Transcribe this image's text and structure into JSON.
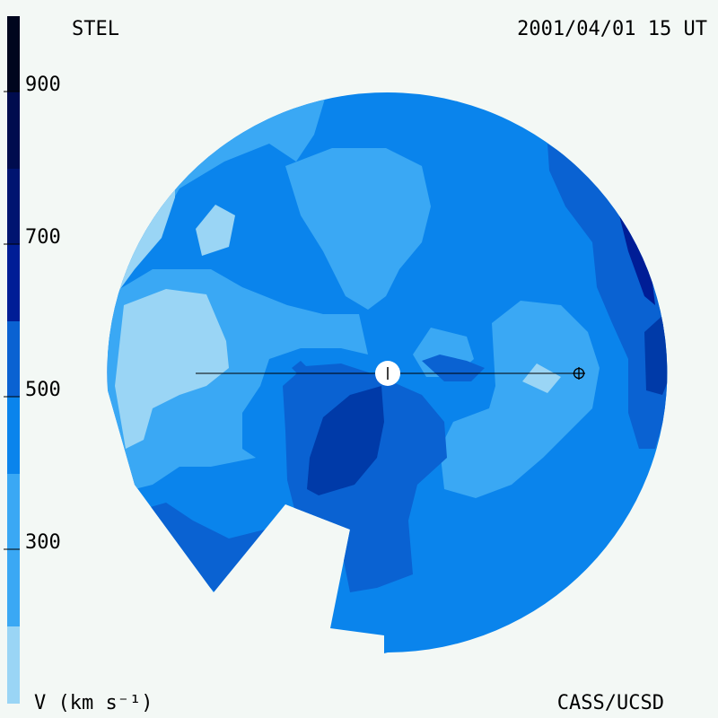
{
  "header": {
    "observatory": "STEL",
    "datetime": "2001/04/01 15 UT"
  },
  "footer": {
    "variable": "V (km s⁻¹)",
    "credit": "CASS/UCSD"
  },
  "colorbar": {
    "tick_labels": [
      "900",
      "700",
      "500",
      "300"
    ],
    "levels": [
      {
        "range": "<200",
        "color": "#9ad5f5"
      },
      {
        "range": "200-300",
        "color": "#3aa8f4"
      },
      {
        "range": "300-400",
        "color": "#0a84ec"
      },
      {
        "range": "400-500",
        "color": "#0a62d2"
      },
      {
        "range": "500-600",
        "color": "#003aa8"
      },
      {
        "range": "600-700",
        "color": "#001d96"
      },
      {
        "range": "700-800",
        "color": "#001470"
      },
      {
        "range": "800-900",
        "color": "#000c4e"
      },
      {
        "range": ">900",
        "color": "#00061e"
      }
    ]
  },
  "map": {
    "view": "ecliptic plane, solar wind velocity",
    "sun_symbol": "sun-icon",
    "earth_symbol": "earth-icon",
    "earth_line_color": "#000000"
  }
}
